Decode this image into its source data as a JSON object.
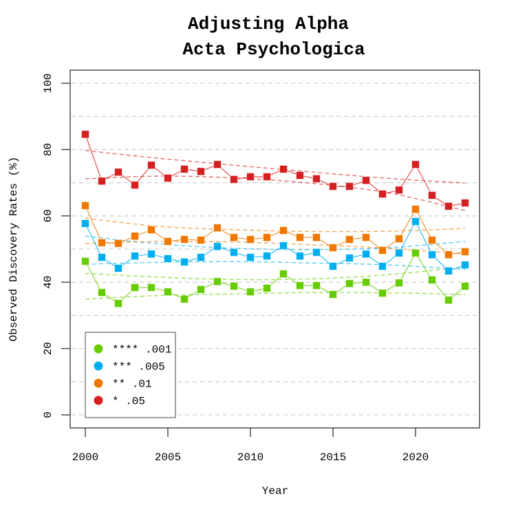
{
  "chart_data": {
    "type": "line",
    "title": [
      "Adjusting Alpha",
      "Acta Psychologica"
    ],
    "xlabel": "Year",
    "ylabel": "Observed Discovery Rates (%)",
    "xlim": [
      1999,
      2024
    ],
    "ylim": [
      -4,
      104
    ],
    "x_ticks": [
      2000,
      2005,
      2010,
      2015,
      2020
    ],
    "x_tick_labels": [
      "2000",
      "2005",
      "2010",
      "2015",
      "2020"
    ],
    "y_ticks": [
      0,
      20,
      40,
      60,
      80,
      100
    ],
    "y_tick_labels": [
      "0",
      "20",
      "40",
      "60",
      "80",
      "100"
    ],
    "grid": true,
    "grid_lines": [
      0,
      10,
      20,
      30,
      40,
      50,
      60,
      70,
      80,
      90,
      100
    ],
    "legend_position": "bottom-left",
    "x": [
      2000,
      2001,
      2002,
      2003,
      2004,
      2005,
      2006,
      2007,
      2008,
      2009,
      2010,
      2011,
      2012,
      2013,
      2014,
      2015,
      2016,
      2017,
      2018,
      2019,
      2020,
      2021,
      2022,
      2023
    ],
    "series": [
      {
        "name": "**** .001",
        "color": "#66cc00",
        "values": [
          46.3,
          36.9,
          33.6,
          38.4,
          38.4,
          37.1,
          34.9,
          37.8,
          40.2,
          38.8,
          37.1,
          38.2,
          42.5,
          39.0,
          39.0,
          36.3,
          39.6,
          40.0,
          36.7,
          39.8,
          48.8,
          40.7,
          34.6,
          38.8
        ],
        "band_upper": [
          42.7,
          41.5,
          40.8,
          41.0,
          42.3,
          44.6
        ],
        "band_lower": [
          34.9,
          36.0,
          36.5,
          36.9,
          36.8,
          36.3
        ]
      },
      {
        "name": "*** .005",
        "color": "#00aeef",
        "values": [
          57.7,
          47.5,
          44.2,
          47.9,
          48.5,
          47.1,
          46.1,
          47.5,
          50.8,
          49.0,
          47.5,
          47.9,
          51.0,
          47.9,
          49.0,
          44.8,
          47.3,
          48.5,
          44.8,
          48.8,
          58.3,
          48.3,
          43.4,
          45.2
        ],
        "band_upper": [
          53.9,
          51.5,
          50.2,
          49.8,
          50.4,
          52.3
        ],
        "band_lower": [
          45.4,
          46.0,
          46.2,
          45.8,
          45.2,
          43.8
        ]
      },
      {
        "name": "** .01",
        "color": "#f07800",
        "values": [
          63.1,
          51.9,
          51.7,
          53.9,
          55.8,
          52.3,
          52.9,
          52.7,
          56.4,
          53.5,
          52.9,
          53.5,
          55.6,
          53.5,
          53.5,
          50.4,
          52.9,
          53.5,
          49.6,
          53.1,
          62.0,
          52.7,
          48.3,
          49.2
        ],
        "band_upper": [
          59.3,
          56.8,
          55.8,
          55.3,
          55.4,
          56.2
        ],
        "band_lower": [
          51.7,
          52.3,
          52.1,
          51.3,
          50.2,
          48.5
        ]
      },
      {
        "name": "* .05",
        "color": "#d42020",
        "values": [
          84.6,
          70.5,
          73.2,
          69.3,
          75.3,
          71.4,
          74.1,
          73.4,
          75.5,
          71.0,
          71.8,
          71.8,
          74.1,
          72.2,
          71.2,
          68.9,
          68.9,
          70.7,
          66.6,
          67.8,
          75.5,
          66.2,
          62.9,
          63.9
        ],
        "band_upper": [
          79.7,
          77.3,
          75.2,
          73.2,
          71.3,
          69.9
        ],
        "band_lower": [
          71.2,
          72.0,
          71.4,
          69.8,
          66.9,
          61.6
        ]
      }
    ],
    "band_x": [
      2000,
      2004.6,
      2009.2,
      2013.8,
      2018.4,
      2023
    ]
  }
}
